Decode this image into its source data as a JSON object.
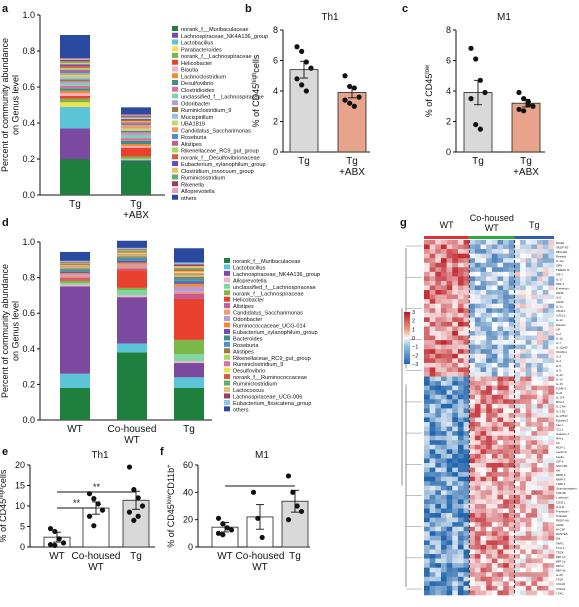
{
  "figure": {
    "panel_letters": [
      "a",
      "b",
      "c",
      "d",
      "e",
      "f",
      "g"
    ]
  },
  "colors": {
    "tg_bar": "#d9d9d9",
    "abx_bar": "#e7a48a",
    "wt_bar": "#ffffff",
    "heat_low": "#2166ac",
    "heat_high": "#c1272d",
    "wt_group": "#e03030",
    "cohoused_group": "#2eaa3a",
    "tg_group": "#2f5fb5"
  },
  "chart_data": [
    {
      "panel": "a",
      "type": "bar",
      "stacked": true,
      "ylabel": "Percent of community abundance on Genus level",
      "ylim": [
        0,
        1.0
      ],
      "yticks": [
        "0.0",
        "0.2",
        "0.4",
        "0.6",
        "0.8",
        "1.0"
      ],
      "categories": [
        "Tg",
        "Tg +ABX"
      ],
      "legend": [
        "norank_f__Muribaculaceae",
        "Lachnospiraceae_NK4A136_group",
        "Lactobacillus",
        "Parabacteroides",
        "norank_f__Lachnospiraceae",
        "Helicobacter",
        "Blautia",
        "Lachnoclostridium",
        "Desulfovibrio",
        "Clostridioides",
        "unclassified_f__Lachnospiraceae",
        "Odoribacter",
        "Ruminiclostridium_9",
        "Mucispirillum",
        "UBA1819",
        "Candidatus_Saccharimonas",
        "Roseburia",
        "Alistipes",
        "Rikenellaceae_RC9_gut_group",
        "norank_f__Desulfovibrionaceae",
        "Eubacterium_xylanophilum_group",
        "Clostridium_innocuum_group",
        "Ruminiclostridium",
        "Rikenella",
        "Alloprevotella",
        "others"
      ],
      "series_colors": [
        "#1f7f3f",
        "#7b4aa0",
        "#5bc4d6",
        "#f1e24a",
        "#7ab648",
        "#e8422f",
        "#f6b0c8",
        "#f58a2b",
        "#3a8f8a",
        "#e06aa8",
        "#7fd6a0",
        "#b79ad6",
        "#9c7a3c",
        "#8fc6e8",
        "#c8d66a",
        "#ef9a6a",
        "#4a8fd0",
        "#c45a9a",
        "#a8d85a",
        "#d45a3a",
        "#6a4ac0",
        "#e8c06a",
        "#58b070",
        "#9a3a5a",
        "#f29ab6",
        "#2a4aa0"
      ],
      "series_values": [
        [
          0.2,
          0.19
        ],
        [
          0.17,
          0.004
        ],
        [
          0.12,
          0.004
        ],
        [
          0.025,
          0.003
        ],
        [
          0.02,
          0.012
        ],
        [
          0.015,
          0.05
        ],
        [
          0.015,
          0.008
        ],
        [
          0.014,
          0.012
        ],
        [
          0.014,
          0.018
        ],
        [
          0.013,
          0.015
        ],
        [
          0.013,
          0.015
        ],
        [
          0.012,
          0.015
        ],
        [
          0.012,
          0.01
        ],
        [
          0.012,
          0.006
        ],
        [
          0.011,
          0.007
        ],
        [
          0.01,
          0.02
        ],
        [
          0.01,
          0.006
        ],
        [
          0.01,
          0.008
        ],
        [
          0.01,
          0.007
        ],
        [
          0.01,
          0.007
        ],
        [
          0.009,
          0.006
        ],
        [
          0.009,
          0.006
        ],
        [
          0.009,
          0.006
        ],
        [
          0.008,
          0.006
        ],
        [
          0.008,
          0.006
        ],
        [
          0.13,
          0.04
        ]
      ]
    },
    {
      "panel": "b",
      "type": "bar",
      "title": "Th1",
      "ylabel": "% of CD45high cells",
      "ylabel_main": "% of CD45",
      "ylabel_sup": "high",
      "ylabel_end": "cells",
      "ylim": [
        0,
        8
      ],
      "yticks": [
        "0",
        "2",
        "4",
        "6",
        "8"
      ],
      "categories": [
        "Tg",
        "Tg +ABX"
      ],
      "values": [
        5.4,
        3.9
      ],
      "errors": [
        0.55,
        0.35
      ],
      "points": [
        [
          6.9,
          6.6,
          5.9,
          5.5,
          4.8,
          4.4,
          4.0
        ],
        [
          5.0,
          4.3,
          4.2,
          3.6,
          3.4,
          3.2,
          3.0
        ]
      ],
      "bar_colors": [
        "#d9d9d9",
        "#e7a48a"
      ]
    },
    {
      "panel": "c",
      "type": "bar",
      "title": "M1",
      "ylabel": "% of CD45low",
      "ylabel_main": "% of CD45",
      "ylabel_sup": "low",
      "ylabel_end": "",
      "ylim": [
        0,
        8
      ],
      "yticks": [
        "0",
        "2",
        "4",
        "6",
        "8"
      ],
      "categories": [
        "Tg",
        "Tg +ABX"
      ],
      "values": [
        3.9,
        3.2
      ],
      "errors": [
        0.8,
        0.25
      ],
      "points": [
        [
          6.8,
          6.1,
          4.7,
          3.9,
          3.5,
          1.8,
          1.5
        ],
        [
          3.9,
          3.5,
          3.3,
          3.0,
          2.8,
          2.7,
          3.1
        ]
      ],
      "bar_colors": [
        "#d9d9d9",
        "#e7a48a"
      ]
    },
    {
      "panel": "d",
      "type": "bar",
      "stacked": true,
      "ylabel": "Percent of community abundance on Genus level",
      "ylim": [
        0,
        1.0
      ],
      "yticks": [
        "0.0",
        "0.2",
        "0.4",
        "0.6",
        "0.8",
        "1.0"
      ],
      "categories": [
        "WT",
        "Co-housed WT",
        "Tg"
      ],
      "legend": [
        "norank_f__Muribaculaceae",
        "Lactobacillus",
        "Lachnospiraceae_NK4A136_group",
        "Alloprevotella",
        "unclassified_f__Lachnospiraceae",
        "norank_f__Lachnospiraceae",
        "Helicobacter",
        "Alistipes",
        "Candidatus_Saccharimonas",
        "Odoribacter",
        "Ruminococcaceae_UCG-014",
        "Eubacterium_xylanophilum_group",
        "Bacteroides",
        "Roseburia",
        "Alistipes",
        "Rikenellaceae_RC9_gut_group",
        "Ruminiclostridium_9",
        "Desulfovibrio",
        "norank_f__Ruminococcaceae",
        "Ruminiclostridium",
        "Lactococcus",
        "Lachnospiraceae_UCG-006",
        "Eubacterium_fissicatena_group",
        "others"
      ],
      "series_colors": [
        "#1f7f3f",
        "#5bc4d6",
        "#7b4aa0",
        "#f6b0c8",
        "#7fd6a0",
        "#7ab648",
        "#e8422f",
        "#c45a9a",
        "#ef9a6a",
        "#b79ad6",
        "#f58a2b",
        "#6a4ac0",
        "#3a8f8a",
        "#4a8fd0",
        "#9c7a3c",
        "#a8d85a",
        "#e06aa8",
        "#f1e24a",
        "#d45a3a",
        "#58b070",
        "#e8c06a",
        "#9a3a5a",
        "#8fc6e8",
        "#2a4aa0"
      ],
      "series_values": [
        [
          0.18,
          0.38,
          0.18
        ],
        [
          0.08,
          0.05,
          0.06
        ],
        [
          0.49,
          0.26,
          0.08
        ],
        [
          0.01,
          0.01,
          0.01
        ],
        [
          0.01,
          0.03,
          0.04
        ],
        [
          0.012,
          0.012,
          0.08
        ],
        [
          0.008,
          0.1,
          0.23
        ],
        [
          0.01,
          0.01,
          0.03
        ],
        [
          0.01,
          0.01,
          0.01
        ],
        [
          0.008,
          0.01,
          0.03
        ],
        [
          0.008,
          0.012,
          0.015
        ],
        [
          0.007,
          0.01,
          0.01
        ],
        [
          0.007,
          0.01,
          0.01
        ],
        [
          0.006,
          0.008,
          0.01
        ],
        [
          0.006,
          0.008,
          0.01
        ],
        [
          0.006,
          0.008,
          0.01
        ],
        [
          0.006,
          0.006,
          0.01
        ],
        [
          0.005,
          0.006,
          0.01
        ],
        [
          0.005,
          0.006,
          0.01
        ],
        [
          0.005,
          0.006,
          0.01
        ],
        [
          0.005,
          0.005,
          0.01
        ],
        [
          0.005,
          0.005,
          0.01
        ],
        [
          0.005,
          0.005,
          0.01
        ],
        [
          0.05,
          0.04,
          0.08
        ]
      ]
    },
    {
      "panel": "e",
      "type": "bar",
      "title": "Th1",
      "ylabel": "% of CD45high cells",
      "ylabel_main": "% of CD45",
      "ylabel_sup": "high",
      "ylabel_end": "cells",
      "ylim": [
        0,
        20
      ],
      "yticks": [
        "0",
        "5",
        "10",
        "15",
        "20"
      ],
      "categories": [
        "WT",
        "Co-housed WT",
        "Tg"
      ],
      "values": [
        2.4,
        9.5,
        11.4
      ],
      "errors": [
        1.2,
        1.5,
        2.2
      ],
      "points": [
        [
          4.5,
          3.8,
          2.0,
          1.0,
          0.6,
          0.4
        ],
        [
          13.0,
          11.8,
          10.5,
          9.0,
          7.5,
          5.2
        ],
        [
          19.5,
          14.0,
          12.0,
          10.0,
          8.5,
          6.5,
          7.5
        ]
      ],
      "bar_colors": [
        "#ffffff",
        "#ffffff",
        "#d9d9d9"
      ],
      "significance": [
        {
          "from": 0,
          "to": 1,
          "label": "**"
        },
        {
          "from": 0,
          "to": 2,
          "label": "**"
        }
      ]
    },
    {
      "panel": "f",
      "type": "bar",
      "title": "M1",
      "ylabel": "% of CD45lowCD11b+",
      "ylabel_main": "% of CD45",
      "ylabel_sup": "low",
      "ylabel_end": "CD11b",
      "ylabel_sup2": "+",
      "ylim": [
        0,
        60
      ],
      "yticks": [
        "0",
        "20",
        "40",
        "60"
      ],
      "categories": [
        "WT",
        "Co-housed WT",
        "Tg"
      ],
      "values": [
        14.5,
        22.0,
        33.5
      ],
      "errors": [
        3.5,
        9.0,
        8.0
      ],
      "points": [
        [
          21.0,
          17.0,
          14.0,
          12.5,
          10.0,
          9.0
        ],
        [
          40.0,
          21.0,
          7.0
        ],
        [
          52.0,
          40.0,
          30.0,
          26.0,
          20.0
        ]
      ],
      "bar_colors": [
        "#ffffff",
        "#ffffff",
        "#d9d9d9"
      ],
      "significance": []
    },
    {
      "panel": "g",
      "type": "heatmap",
      "groups": [
        "WT",
        "Co-housed WT",
        "Tg"
      ],
      "group_sizes": [
        8,
        8,
        7
      ],
      "colorbar_ticks": [
        "3",
        "2",
        "1",
        "0",
        "−1",
        "−2",
        "−3"
      ],
      "n_rows": 78,
      "row_labels": [
        "RAGE",
        "VEGF R3",
        "MFG-E8",
        "Resistin",
        "IL-1ra",
        "OPN",
        "TWEAK R",
        "IGF-I",
        "IL-17",
        "SDF-1",
        "E-selectin",
        "CD36",
        "IL-6",
        "CD40",
        "IL-1α",
        "CD40 L",
        "CXCL5",
        "IL-12",
        "Eotaxin",
        "LIF",
        "IL-2",
        "IL-1β",
        "IL-7",
        "IL-12p40",
        "VCAM-1",
        "IL-3",
        "IL-4",
        "IL-5",
        "IL-9",
        "IL-10",
        "IL-13",
        "IL-15",
        "ICAM-1",
        "IL-21",
        "IL-17A",
        "BCA-1",
        "IL-1 R4",
        "IL-1 R2",
        "IL-17B R",
        "Eotaxin-2",
        "Fas L",
        "CCL1",
        "Galectin-7",
        "IFN-γ",
        "KC",
        "MCP-1",
        "Leptin R",
        "Leptin",
        "IGF-II",
        "GM-CSF",
        "Axl",
        "MMP-2",
        "MMP-3",
        "TIMP-1",
        "Osteoprotegerin",
        "TNF RII",
        "L-selectin",
        "CD30 L",
        "IL-6 R",
        "P-selectin",
        "Prolactin",
        "PDGF-AA",
        "VEGF",
        "M-CSF",
        "RANTES",
        "Dtk",
        "TARC",
        "TCA-3",
        "TECK",
        "MIP-1α",
        "MIP-1γ",
        "MIP-2",
        "MIP-3α",
        "IL-28",
        "TSLP",
        "CCL20",
        "CTACK",
        "I-TAC"
      ]
    }
  ]
}
